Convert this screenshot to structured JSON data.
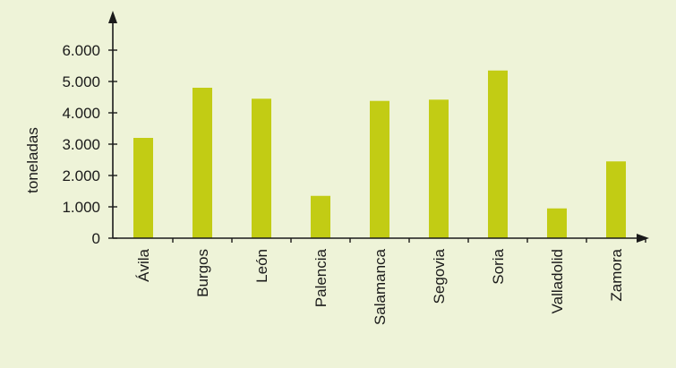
{
  "colors": {
    "background": "#eef3d8",
    "bar": "#c2cc14",
    "axis": "#1a1a1a"
  },
  "chart_data": {
    "type": "bar",
    "title": "",
    "xlabel": "",
    "ylabel": "toneladas",
    "categories": [
      "Ávila",
      "Burgos",
      "León",
      "Palencia",
      "Salamanca",
      "Segovia",
      "Soria",
      "Valladolid",
      "Zamora"
    ],
    "values": [
      3200,
      4800,
      4450,
      1350,
      4380,
      4420,
      5350,
      950,
      2450
    ],
    "ylim": [
      0,
      6000
    ],
    "yticks": [
      0,
      1000,
      2000,
      3000,
      4000,
      5000,
      6000
    ],
    "ytick_labels": [
      "0",
      "1.000",
      "2.000",
      "3.000",
      "4.000",
      "5.000",
      "6.000"
    ],
    "grid": false,
    "legend": "none"
  }
}
